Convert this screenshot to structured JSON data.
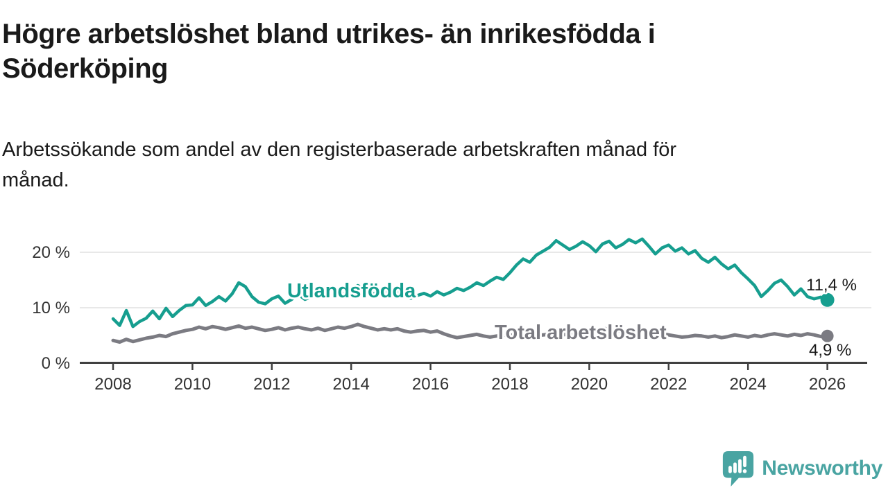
{
  "header": {
    "title_lines": [
      "Högre arbetslöshet bland utrikes- än inrikesfödda i",
      "Söderköping"
    ],
    "subtitle_lines": [
      "Arbetssökande som andel av den registerbaserade arbetskraften månad för",
      "månad."
    ]
  },
  "branding": {
    "logo_text": "Newsworthy",
    "logo_icon": "newsworthy-speech-bubble-bar-chart-icon",
    "logo_color": "#49a4a2"
  },
  "chart_data": {
    "type": "line",
    "title": "Högre arbetslöshet bland utrikes- än inrikesfödda i Söderköping",
    "subtitle": "Arbetssökande som andel av den registerbaserade arbetskraften månad för månad.",
    "grid": true,
    "legend_position": "inline-labels",
    "x_start": 2008,
    "x_step": 0.1666667,
    "xlim": [
      2007.9,
      2027.0
    ],
    "ylim": [
      0,
      25
    ],
    "xticks": [
      2008,
      2010,
      2012,
      2014,
      2016,
      2018,
      2020,
      2022,
      2024,
      2026
    ],
    "xtick_labels": [
      "2008",
      "2010",
      "2012",
      "2014",
      "2016",
      "2018",
      "2020",
      "2022",
      "2024",
      "2026"
    ],
    "yticks": [
      {
        "value": 0,
        "label": "0 %"
      },
      {
        "value": 10,
        "label": "10 %"
      },
      {
        "value": 20,
        "label": "20 %"
      }
    ],
    "series": [
      {
        "name": "Utlandsfödda",
        "label": "Utlandsfödda",
        "color": "#169e8f",
        "end_label": "11,4 %",
        "end_value": 11.4,
        "values": [
          8.0,
          6.8,
          9.5,
          6.6,
          7.5,
          8.1,
          9.4,
          8.0,
          9.9,
          8.4,
          9.5,
          10.4,
          10.5,
          11.8,
          10.4,
          11.1,
          12.0,
          11.2,
          12.5,
          14.5,
          13.8,
          12.0,
          11.0,
          10.7,
          11.6,
          12.1,
          10.8,
          11.5,
          12.4,
          11.5,
          12.0,
          13.0,
          12.2,
          13.5,
          13.0,
          12.4,
          13.1,
          14.0,
          13.4,
          12.4,
          12.8,
          13.2,
          12.5,
          13.1,
          12.1,
          11.7,
          12.2,
          12.6,
          12.1,
          12.9,
          12.3,
          12.8,
          13.5,
          13.1,
          13.7,
          14.5,
          14.0,
          14.8,
          15.5,
          15.1,
          16.3,
          17.7,
          18.8,
          18.2,
          19.5,
          20.2,
          20.9,
          22.1,
          21.3,
          20.5,
          21.1,
          21.9,
          21.2,
          20.1,
          21.5,
          22.0,
          20.8,
          21.4,
          22.3,
          21.7,
          22.4,
          21.1,
          19.7,
          20.8,
          21.3,
          20.2,
          20.8,
          19.7,
          20.3,
          18.9,
          18.2,
          19.1,
          17.9,
          17.0,
          17.7,
          16.3,
          15.2,
          14.0,
          12.0,
          13.1,
          14.4,
          15.0,
          13.8,
          12.3,
          13.4,
          12.0,
          11.6,
          11.9,
          11.4
        ]
      },
      {
        "name": "Total arbetslöshet",
        "label": "Total arbetslöshet",
        "color": "#7b7b82",
        "end_label": "4,9 %",
        "end_value": 4.9,
        "values": [
          4.1,
          3.8,
          4.3,
          3.9,
          4.2,
          4.5,
          4.7,
          5.0,
          4.8,
          5.3,
          5.6,
          5.9,
          6.1,
          6.5,
          6.2,
          6.6,
          6.4,
          6.1,
          6.4,
          6.7,
          6.3,
          6.5,
          6.2,
          5.9,
          6.1,
          6.4,
          6.0,
          6.3,
          6.5,
          6.2,
          6.0,
          6.3,
          5.9,
          6.2,
          6.5,
          6.3,
          6.6,
          7.0,
          6.6,
          6.3,
          6.0,
          6.2,
          6.0,
          6.2,
          5.8,
          5.6,
          5.8,
          5.9,
          5.6,
          5.8,
          5.3,
          4.9,
          4.6,
          4.8,
          5.0,
          5.2,
          4.9,
          4.7,
          4.9,
          5.1,
          5.0,
          5.2,
          4.9,
          4.7,
          4.9,
          5.1,
          5.2,
          5.4,
          5.1,
          5.3,
          5.5,
          5.6,
          5.7,
          6.0,
          6.3,
          6.1,
          5.9,
          5.7,
          5.8,
          5.6,
          5.4,
          5.2,
          5.1,
          5.3,
          5.1,
          4.9,
          4.7,
          4.8,
          5.0,
          4.9,
          4.7,
          4.9,
          4.6,
          4.8,
          5.1,
          4.9,
          4.7,
          5.0,
          4.8,
          5.1,
          5.3,
          5.1,
          4.9,
          5.2,
          5.0,
          5.3,
          5.1,
          4.8,
          4.9
        ]
      }
    ]
  }
}
